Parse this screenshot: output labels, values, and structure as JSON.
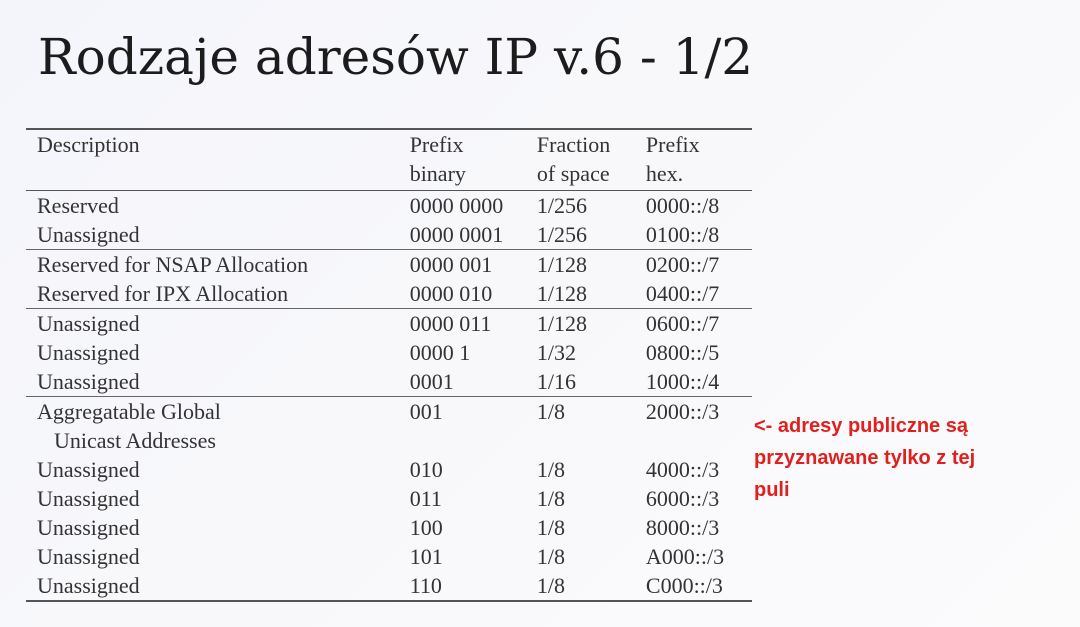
{
  "title": "Rodzaje adresów IP v.6 - 1/2",
  "table": {
    "headers": {
      "description": "Description",
      "prefix_binary": [
        "Prefix",
        "binary"
      ],
      "fraction": [
        "Fraction",
        "of space"
      ],
      "prefix_hex": [
        "Prefix",
        "hex."
      ]
    },
    "rows": [
      {
        "description": "Reserved",
        "binary": "0000 0000",
        "fraction": "1/256",
        "hex": "0000::/8"
      },
      {
        "description": "Unassigned",
        "binary": "0000 0001",
        "fraction": "1/256",
        "hex": "0100::/8"
      },
      {
        "description": "Reserved for NSAP Allocation",
        "binary": "0000 001",
        "fraction": "1/128",
        "hex": "0200::/7"
      },
      {
        "description": "Reserved for IPX Allocation",
        "binary": "0000 010",
        "fraction": "1/128",
        "hex": "0400::/7"
      },
      {
        "description": "Unassigned",
        "binary": "0000 011",
        "fraction": "1/128",
        "hex": "0600::/7"
      },
      {
        "description": "Unassigned",
        "binary": "0000 1",
        "fraction": "1/32",
        "hex": "0800::/5"
      },
      {
        "description": "Unassigned",
        "binary": "0001",
        "fraction": "1/16",
        "hex": "1000::/4"
      },
      {
        "description": "Aggregatable Global",
        "description_cont": "Unicast Addresses",
        "binary": "001",
        "fraction": "1/8",
        "hex": "2000::/3"
      },
      {
        "description": "Unassigned",
        "binary": "010",
        "fraction": "1/8",
        "hex": "4000::/3"
      },
      {
        "description": "Unassigned",
        "binary": "011",
        "fraction": "1/8",
        "hex": "6000::/3"
      },
      {
        "description": "Unassigned",
        "binary": "100",
        "fraction": "1/8",
        "hex": "8000::/3"
      },
      {
        "description": "Unassigned",
        "binary": "101",
        "fraction": "1/8",
        "hex": "A000::/3"
      },
      {
        "description": "Unassigned",
        "binary": "110",
        "fraction": "1/8",
        "hex": "C000::/3"
      }
    ]
  },
  "annotation": {
    "lines": [
      "<- adresy publiczne są",
      "przyznawane tylko z tej",
      "puli"
    ],
    "color": "#e0201e"
  }
}
